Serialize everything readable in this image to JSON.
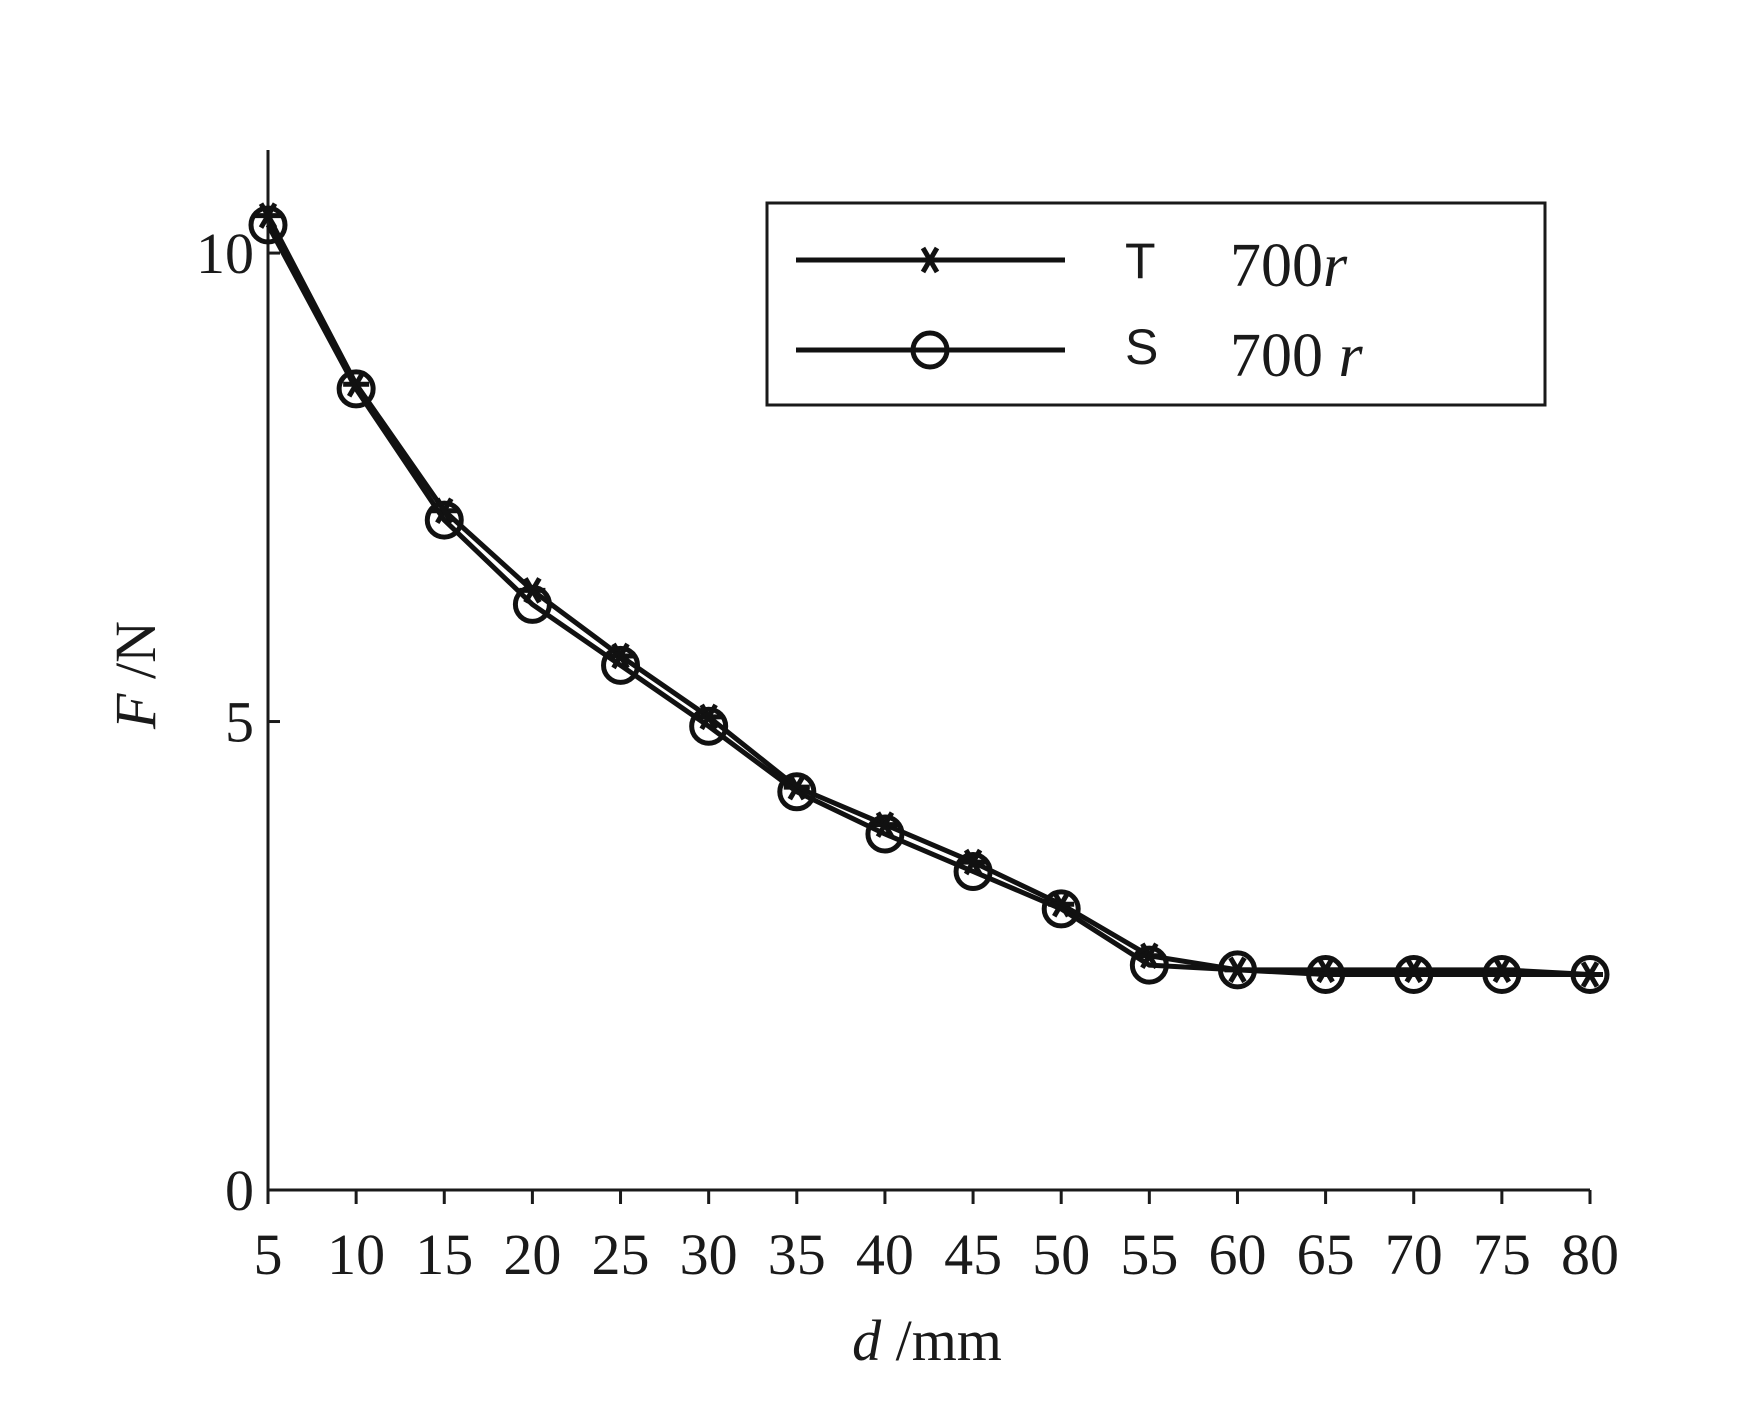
{
  "chart_data": {
    "type": "line",
    "title": "",
    "x": [
      5,
      10,
      15,
      20,
      25,
      30,
      35,
      40,
      45,
      50,
      55,
      60,
      65,
      70,
      75,
      80
    ],
    "x_tick_labels": [
      "5",
      "10",
      "15",
      "20",
      "25",
      "30",
      "35",
      "40",
      "45",
      "50",
      "55",
      "60",
      "65",
      "70",
      "75",
      "80"
    ],
    "y_ticks": [
      0,
      5,
      10
    ],
    "y_tick_labels": [
      "0",
      "5",
      "10"
    ],
    "ylim": [
      0,
      11.1
    ],
    "xlabel": {
      "var": "d",
      "unit": " /mm"
    },
    "ylabel": {
      "var": "F",
      "unit": " /N"
    },
    "grid": false,
    "legend_position": "top-right",
    "series": [
      {
        "name": "T",
        "label": "700r",
        "label_num": "700",
        "label_var": "r",
        "marker": "asterisk",
        "values": [
          10.4,
          8.6,
          7.25,
          6.4,
          5.7,
          5.05,
          4.3,
          3.9,
          3.5,
          3.05,
          2.5,
          2.35,
          2.35,
          2.35,
          2.35,
          2.3
        ]
      },
      {
        "name": "S",
        "label": "700 r",
        "label_num": "700 ",
        "label_var": "r",
        "marker": "circle",
        "values": [
          10.3,
          8.55,
          7.15,
          6.25,
          5.6,
          4.95,
          4.25,
          3.8,
          3.4,
          3.0,
          2.4,
          2.35,
          2.3,
          2.3,
          2.3,
          2.3
        ]
      }
    ],
    "colors": {
      "line": "#111111",
      "axis": "#1a1a1a"
    }
  }
}
